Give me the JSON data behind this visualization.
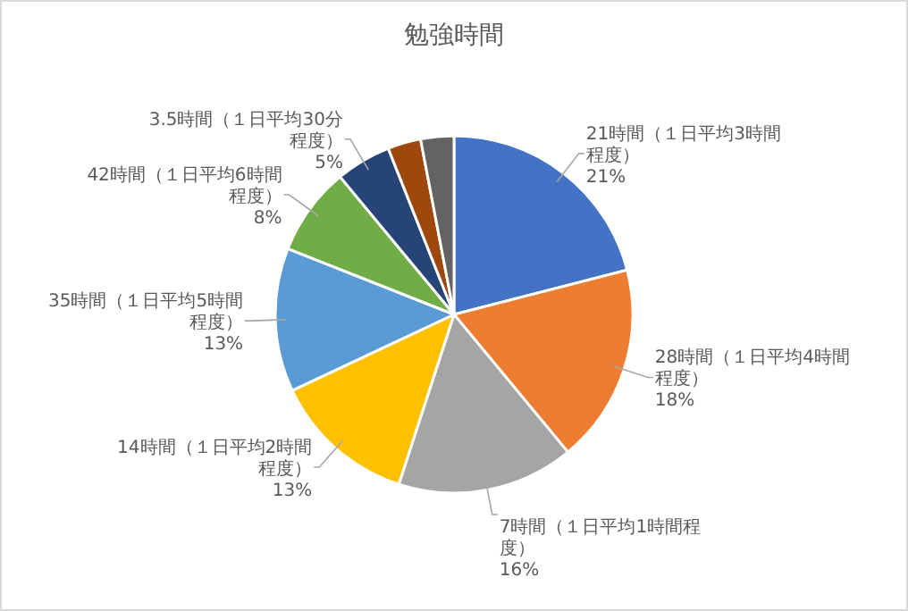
{
  "chart_data": {
    "type": "pie",
    "title": "勉強時間",
    "categories": [
      "21時間（１日平均3時間程度）",
      "28時間（１日平均4時間程度）",
      "7時間（１日平均1時間程度）",
      "14時間（１日平均2時間程度）",
      "35時間（１日平均5時間程度）",
      "42時間（１日平均6時間程度）",
      "3.5時間（１日平均30分程度）",
      null,
      null
    ],
    "values": [
      21,
      18,
      16,
      13,
      13,
      8,
      5,
      3,
      3
    ],
    "value_labels": [
      "21%",
      "18%",
      "16%",
      "13%",
      "13%",
      "8%",
      "5%",
      null,
      null
    ],
    "colors": [
      "#4472c4",
      "#ed7d31",
      "#a5a5a5",
      "#ffc000",
      "#5b9bd5",
      "#70ad47",
      "#264478",
      "#9e480e",
      "#636363"
    ]
  }
}
